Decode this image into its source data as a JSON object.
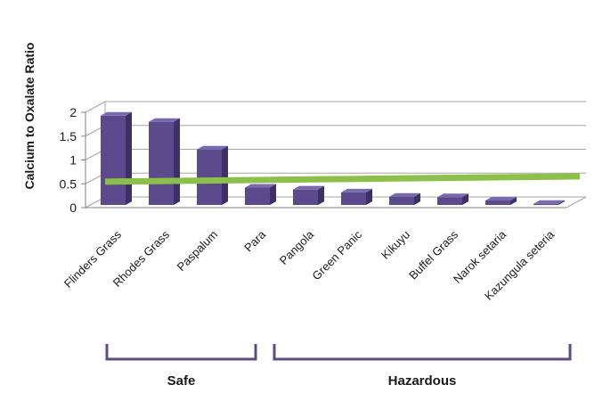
{
  "chart_data": {
    "type": "bar",
    "style": "3d-column",
    "categories": [
      "Flinders Grass",
      "Rhodes Grass",
      "Paspalum",
      "Para",
      "Pangola",
      "Green Panic",
      "Kikuyu",
      "Buffel Grass",
      "Narok setaria",
      "Kazungula seteria"
    ],
    "values": [
      1.93,
      1.8,
      1.22,
      0.42,
      0.38,
      0.32,
      0.23,
      0.22,
      0.15,
      0.08
    ],
    "ylabel": "Calcium to Oxalate Ratio",
    "xlabel": "",
    "ylim": [
      0,
      2
    ],
    "yticks": [
      "0",
      "0.5",
      "1",
      "1.5",
      "2"
    ],
    "grid": true,
    "threshold": {
      "value": 0.6,
      "color": "#8cc04b"
    },
    "groups": [
      {
        "label": "Safe",
        "categories": [
          "Flinders Grass",
          "Rhodes Grass",
          "Paspalum",
          "Para"
        ]
      },
      {
        "label": "Hazardous",
        "categories": [
          "Pangola",
          "Green Panic",
          "Kikuyu",
          "Buffel Grass",
          "Narok setaria",
          "Kazungula seteria"
        ]
      }
    ],
    "colors": {
      "bar_front": "#5b4a8c",
      "bar_side": "#3d3066",
      "bar_top": "#7a69ad",
      "bracket": "#5c4a8a",
      "grid": "#a6a6a6"
    }
  }
}
